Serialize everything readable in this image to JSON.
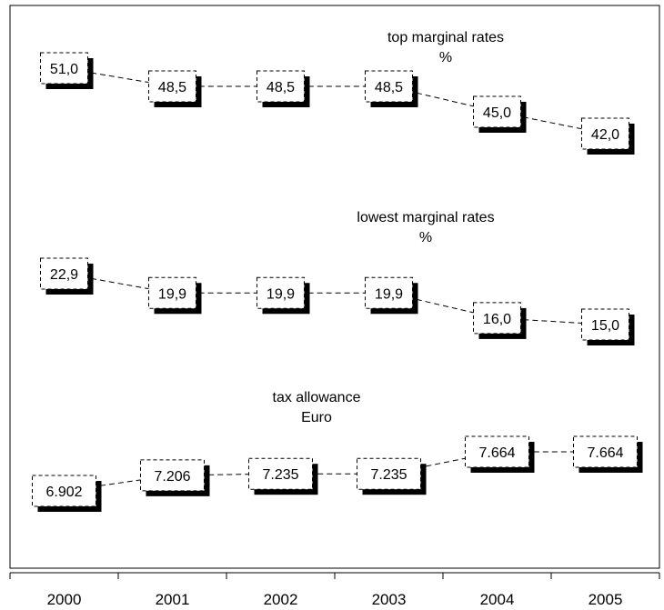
{
  "chart_data": {
    "type": "line",
    "x": [
      "2000",
      "2001",
      "2002",
      "2003",
      "2004",
      "2005"
    ],
    "series": [
      {
        "key": "top",
        "title_lines": [
          "top marginal rates",
          "%"
        ],
        "values": [
          51.0,
          48.5,
          48.5,
          48.5,
          45.0,
          42.0
        ],
        "labels": [
          "51,0",
          "48,5",
          "48,5",
          "48,5",
          "45,0",
          "42,0"
        ]
      },
      {
        "key": "lowest",
        "title_lines": [
          "lowest marginal rates",
          "%"
        ],
        "values": [
          22.9,
          19.9,
          19.9,
          19.9,
          16.0,
          15.0
        ],
        "labels": [
          "22,9",
          "19,9",
          "19,9",
          "19,9",
          "16,0",
          "15,0"
        ]
      },
      {
        "key": "allowance",
        "title_lines": [
          "tax allowance",
          "Euro"
        ],
        "values": [
          6902,
          7206,
          7235,
          7235,
          7664,
          7664
        ],
        "labels": [
          "6.902",
          "7.206",
          "7.235",
          "7.235",
          "7.664",
          "7.664"
        ]
      }
    ],
    "grid": false,
    "legend": "none"
  }
}
